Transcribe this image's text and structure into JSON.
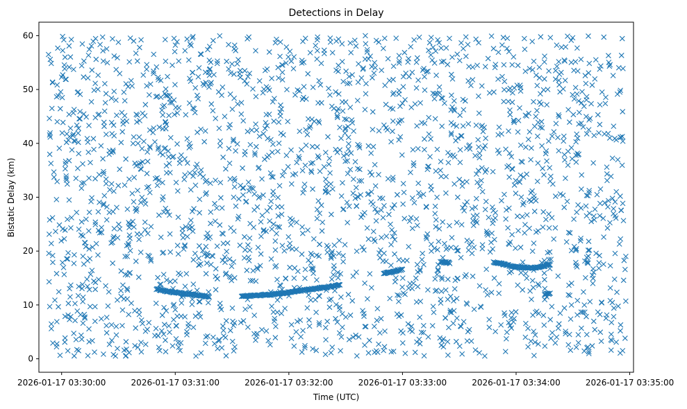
{
  "chart_data": {
    "type": "scatter",
    "title": "Detections in Delay",
    "xlabel": "Time (UTC)",
    "ylabel": "Bistatic Delay (km)",
    "x_axis": {
      "type": "time",
      "range": [
        "2026-01-17 03:29:48",
        "2026-01-17 03:35:02"
      ],
      "ticks": [
        "2026-01-17 03:30:00",
        "2026-01-17 03:31:00",
        "2026-01-17 03:32:00",
        "2026-01-17 03:33:00",
        "2026-01-17 03:34:00",
        "2026-01-17 03:35:00"
      ]
    },
    "y_axis": {
      "range": [
        -2.5,
        62.5
      ],
      "ticks": [
        "0",
        "10",
        "20",
        "30",
        "40",
        "50",
        "60"
      ]
    },
    "marker": "x",
    "color": "#1f77b4",
    "grid": false,
    "legend": "none",
    "series": [
      {
        "clutter_range": {
          "time": [
            "2026-01-17 03:29:53",
            "2026-01-17 03:34:58"
          ],
          "delay_km": [
            0.5,
            60
          ]
        },
        "tracks": [
          {
            "points": [
              [
                "2026-01-17 03:30:50",
                12.9
              ],
              [
                "2026-01-17 03:31:00",
                12.3
              ],
              [
                "2026-01-17 03:31:10",
                11.9
              ],
              [
                "2026-01-17 03:31:18",
                11.5
              ]
            ]
          },
          {
            "points": [
              [
                "2026-01-17 03:31:35",
                11.6
              ],
              [
                "2026-01-17 03:31:50",
                11.9
              ],
              [
                "2026-01-17 03:32:05",
                12.6
              ],
              [
                "2026-01-17 03:32:20",
                13.3
              ],
              [
                "2026-01-17 03:32:27",
                13.7
              ]
            ]
          },
          {
            "points": [
              [
                "2026-01-17 03:32:50",
                15.8
              ],
              [
                "2026-01-17 03:33:00",
                16.6
              ]
            ]
          },
          {
            "points": [
              [
                "2026-01-17 03:33:20",
                18.0
              ],
              [
                "2026-01-17 03:33:25",
                17.8
              ]
            ]
          },
          {
            "points": [
              [
                "2026-01-17 03:33:48",
                18.0
              ],
              [
                "2026-01-17 03:34:00",
                17.0
              ],
              [
                "2026-01-17 03:34:10",
                16.9
              ],
              [
                "2026-01-17 03:34:18",
                17.5
              ]
            ]
          },
          {
            "points": [
              [
                "2026-01-17 03:34:15",
                12.0
              ],
              [
                "2026-01-17 03:34:18",
                12.1
              ]
            ]
          }
        ]
      }
    ]
  }
}
